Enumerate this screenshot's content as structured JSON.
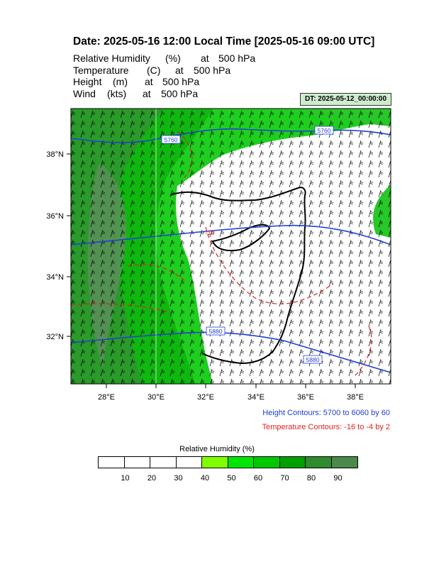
{
  "title": "Date: 2025-05-16  12:00 Local Time [2025-05-16  09:00 UTC]",
  "fields": [
    {
      "name": "Relative Humidity",
      "unit": "(%)",
      "at": "at",
      "level": "500 hPa"
    },
    {
      "name": "Temperature",
      "unit": "(C)",
      "at": "at",
      "level": "500 hPa"
    },
    {
      "name": "Height",
      "unit": "(m)",
      "at": "at",
      "level": "500 hPa"
    },
    {
      "name": "Wind",
      "unit": "(kts)",
      "at": "at",
      "level": "500 hPa"
    }
  ],
  "dt_badge": "DT: 2025-05-12_00:00:00",
  "map": {
    "lon_range": [
      26.6,
      39.4
    ],
    "lat_range": [
      30.5,
      39.4
    ],
    "x_ticks": [
      "28°E",
      "30°E",
      "32°E",
      "34°E",
      "36°E",
      "38°E"
    ],
    "y_ticks": [
      "32°N",
      "34°N",
      "36°N",
      "38°N"
    ],
    "height_contour_labels": [
      "5760",
      "5760",
      "5880",
      "5880"
    ],
    "temperature_contour_labels": [
      "-10"
    ],
    "height_color": "#1f3fd6",
    "temperature_color": "#e02020",
    "coast_color": "#000000"
  },
  "legend": {
    "height_contours": "Height Contours: 5700 to 6060 by 60",
    "temperature_contours": "Temperature Contours: -16 to -4 by 2"
  },
  "colorbar": {
    "title": "Relative Humidity  (%)",
    "labels": [
      "10",
      "20",
      "30",
      "40",
      "50",
      "60",
      "70",
      "80",
      "90"
    ],
    "colors": [
      "#ffffff",
      "#ffffff",
      "#ffffff",
      "#ffffff",
      "#80ff00",
      "#00e600",
      "#00c800",
      "#00a000",
      "#2e8b2e",
      "#4a8a4a"
    ]
  }
}
